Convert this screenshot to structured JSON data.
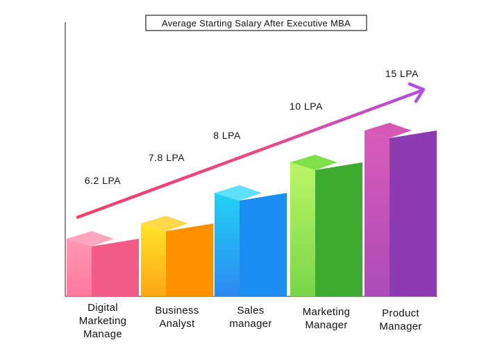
{
  "chart_data": {
    "type": "bar",
    "title": "Average Starting Salary After Executive MBA",
    "xlabel": "",
    "ylabel": "",
    "categories": [
      [
        "Digital",
        "Marketing",
        "Manage"
      ],
      [
        "Business",
        "Analyst"
      ],
      [
        "Sales",
        "manager"
      ],
      [
        "Marketing",
        "Manager"
      ],
      [
        "Product",
        "Manager"
      ]
    ],
    "values": [
      6.2,
      7.8,
      8,
      10,
      15
    ],
    "data_labels": [
      "6.2 LPA",
      "7.8 LPA",
      "8 LPA",
      "10 LPA",
      "15 LPA"
    ],
    "unit": "LPA",
    "grid": false,
    "legend": "none",
    "trend_arrow": true,
    "colors": [
      {
        "top": "#FFA6BE",
        "front_light": "#FF8FAE",
        "front_dark": "#FF6D95",
        "side": "#F25C87"
      },
      {
        "top": "#FFD84A",
        "front_light": "#FFE31A",
        "front_dark": "#FF9E00",
        "side": "#FF9000"
      },
      {
        "top": "#5FE0FA",
        "front_light": "#10CFF3",
        "front_dark": "#1A7FF0",
        "side": "#1C8EF2"
      },
      {
        "top": "#7FE04A",
        "front_light": "#B5F55A",
        "front_dark": "#6FD23A",
        "side": "#3FAA30"
      },
      {
        "top": "#D558B4",
        "front_light": "#D64DB5",
        "front_dark": "#A53DB1",
        "side": "#8C3BB0"
      }
    ],
    "arrow_colors": [
      "#F23F6B",
      "#B04FE0"
    ]
  }
}
